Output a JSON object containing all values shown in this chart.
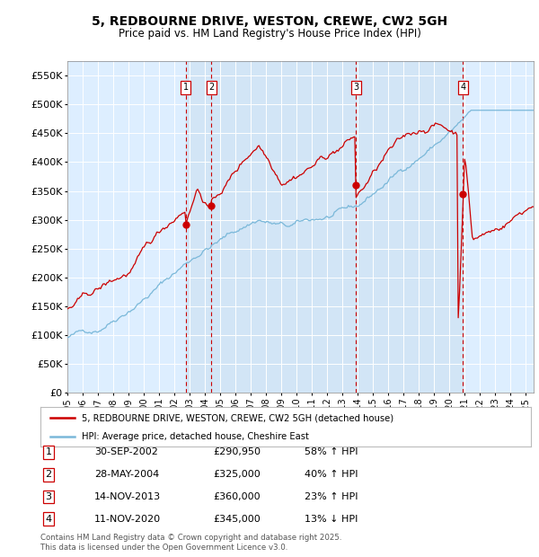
{
  "title": "5, REDBOURNE DRIVE, WESTON, CREWE, CW2 5GH",
  "subtitle": "Price paid vs. HM Land Registry's House Price Index (HPI)",
  "ylim": [
    0,
    575000
  ],
  "yticks": [
    0,
    50000,
    100000,
    150000,
    200000,
    250000,
    300000,
    350000,
    400000,
    450000,
    500000,
    550000
  ],
  "ytick_labels": [
    "£0",
    "£50K",
    "£100K",
    "£150K",
    "£200K",
    "£250K",
    "£300K",
    "£350K",
    "£400K",
    "£450K",
    "£500K",
    "£550K"
  ],
  "hpi_color": "#7ab8d9",
  "price_color": "#cc0000",
  "vline_color": "#cc0000",
  "shade_color": "#cce0f0",
  "bg_color": "#ddeeff",
  "plot_bg": "#ffffff",
  "legend_label_price": "5, REDBOURNE DRIVE, WESTON, CREWE, CW2 5GH (detached house)",
  "legend_label_hpi": "HPI: Average price, detached house, Cheshire East",
  "transactions": [
    {
      "num": 1,
      "date": "30-SEP-2002",
      "price": "£290,950",
      "pct": "58%",
      "dir": "↑",
      "x_year": 2002.75
    },
    {
      "num": 2,
      "date": "28-MAY-2004",
      "price": "£325,000",
      "pct": "40%",
      "dir": "↑",
      "x_year": 2004.42
    },
    {
      "num": 3,
      "date": "14-NOV-2013",
      "price": "£360,000",
      "pct": "23%",
      "dir": "↑",
      "x_year": 2013.87
    },
    {
      "num": 4,
      "date": "11-NOV-2020",
      "price": "£345,000",
      "pct": "13%",
      "dir": "↓",
      "x_year": 2020.87
    }
  ],
  "footnote": "Contains HM Land Registry data © Crown copyright and database right 2025.\nThis data is licensed under the Open Government Licence v3.0.",
  "xmin": 1995.0,
  "xmax": 2025.5
}
